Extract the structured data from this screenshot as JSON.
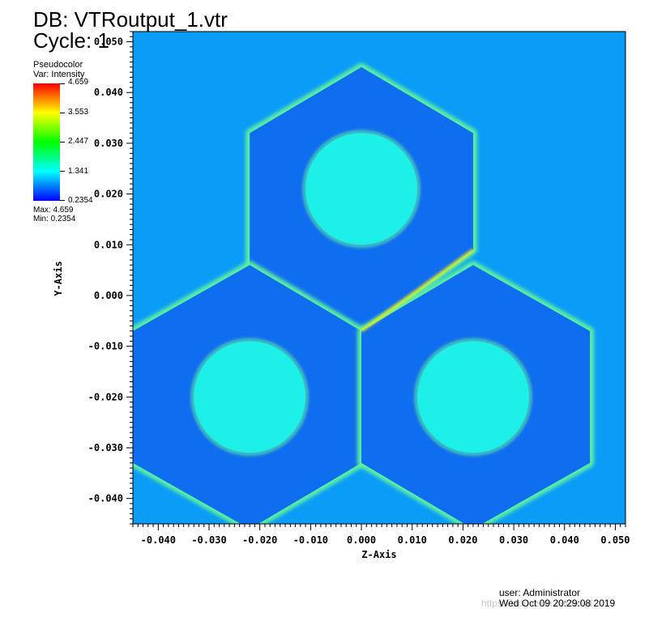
{
  "header": {
    "db_label": "DB: VTRoutput_1.vtr",
    "cycle_label": "Cycle: 1"
  },
  "legend": {
    "plot_type": "Pseudocolor",
    "variable": "Var: Intensity",
    "ticks": [
      "4.659",
      "3.553",
      "2.447",
      "1.341",
      "0.2354"
    ],
    "max_label": "Max:  4.659",
    "min_label": "Min:  0.2354",
    "colors": [
      "#ff0000",
      "#ffff00",
      "#00ff00",
      "#00ffff",
      "#0000ff"
    ]
  },
  "footer": {
    "user": "user: Administrator",
    "date": "Wed Oct 09 20:29:08 2019",
    "watermark": "https://blog.csdn.net/fangl"
  },
  "chart_data": {
    "type": "heatmap",
    "variable": "Intensity",
    "xlabel": "Z-Axis",
    "ylabel": "Y-Axis",
    "xlim": [
      -0.045,
      0.052
    ],
    "ylim": [
      -0.045,
      0.052
    ],
    "value_range": [
      0.2354,
      4.659
    ],
    "x_ticks": [
      "-0.040",
      "-0.030",
      "-0.020",
      "-0.010",
      "0.000",
      "0.010",
      "0.020",
      "0.030",
      "0.040",
      "0.050"
    ],
    "x_tick_values": [
      -0.04,
      -0.03,
      -0.02,
      -0.01,
      0.0,
      0.01,
      0.02,
      0.03,
      0.04,
      0.05
    ],
    "y_ticks": [
      "0.050",
      "0.040",
      "0.030",
      "0.020",
      "0.010",
      "0.000",
      "-0.010",
      "-0.020",
      "-0.030",
      "-0.040"
    ],
    "y_tick_values": [
      0.05,
      0.04,
      0.03,
      0.02,
      0.01,
      0.0,
      -0.01,
      -0.02,
      -0.03,
      -0.04
    ],
    "background_color": "#0a9cf7",
    "hexagon_fill_color": "#0f6df0",
    "edge_color": "#5cf0a0",
    "hot_edge_color": "#f2f010",
    "circle_color": "#1cf0e8",
    "regions": [
      {
        "name": "top-hexagon",
        "polygon": [
          [
            0.0,
            0.045
          ],
          [
            0.022,
            0.032
          ],
          [
            0.022,
            0.009
          ],
          [
            0.0,
            -0.007
          ],
          [
            -0.022,
            0.006
          ],
          [
            -0.022,
            0.032
          ]
        ],
        "circle_center": [
          0.0,
          0.021
        ],
        "circle_radius": 0.011
      },
      {
        "name": "left-hexagon",
        "polygon": [
          [
            -0.022,
            0.006
          ],
          [
            0.0,
            -0.007
          ],
          [
            0.0,
            -0.033
          ],
          [
            -0.022,
            -0.046
          ],
          [
            -0.045,
            -0.033
          ],
          [
            -0.045,
            -0.007
          ]
        ],
        "circle_center": [
          -0.022,
          -0.02
        ],
        "circle_radius": 0.011
      },
      {
        "name": "right-hexagon",
        "polygon": [
          [
            0.022,
            0.006
          ],
          [
            0.045,
            -0.007
          ],
          [
            0.045,
            -0.033
          ],
          [
            0.022,
            -0.046
          ],
          [
            0.0,
            -0.033
          ],
          [
            0.0,
            -0.007
          ]
        ],
        "circle_center": [
          0.022,
          -0.02
        ],
        "circle_radius": 0.011
      }
    ]
  }
}
